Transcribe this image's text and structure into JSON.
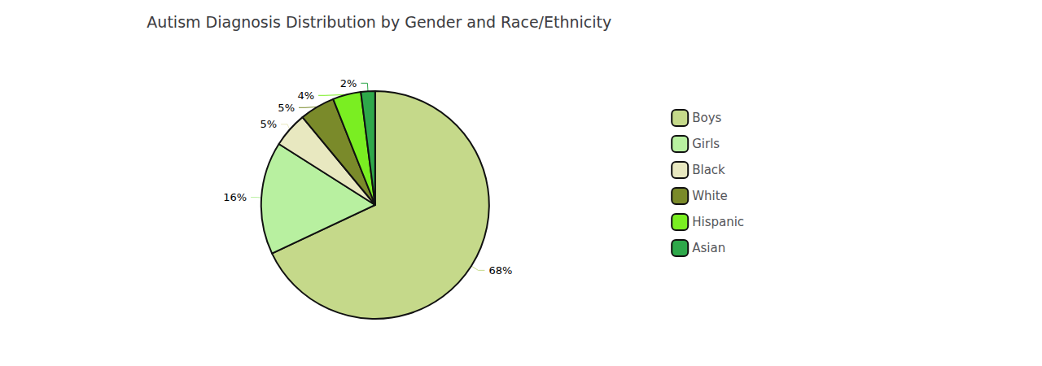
{
  "chart_data": {
    "type": "pie",
    "title": "Autism Diagnosis Distribution by Gender and Race/Ethnicity",
    "categories": [
      "Boys",
      "Girls",
      "Black",
      "White",
      "Hispanic",
      "Asian"
    ],
    "values": [
      68,
      16,
      5,
      5,
      4,
      2
    ],
    "value_labels": [
      "68%",
      "16%",
      "5%",
      "5%",
      "4%",
      "2%"
    ],
    "colors": [
      "#c5d98a",
      "#b8f0a0",
      "#e8e8c0",
      "#7a8a2a",
      "#7aee22",
      "#2ea84a"
    ],
    "data_labels": true,
    "legend": "right"
  }
}
